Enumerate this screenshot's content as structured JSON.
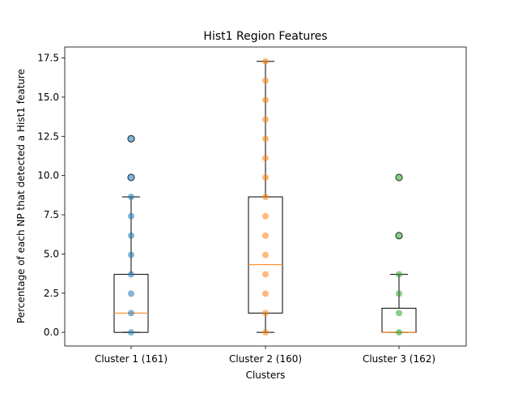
{
  "chart_data": {
    "type": "box",
    "title": "Hist1 Region Features",
    "xlabel": "Clusters",
    "ylabel": "Percentage of each NP that detected a Hist1 feature",
    "ylim": [
      -0.87,
      18.2
    ],
    "yticks": [
      0.0,
      2.5,
      5.0,
      7.5,
      10.0,
      12.5,
      15.0,
      17.5
    ],
    "ytick_labels": [
      "0.0",
      "2.5",
      "5.0",
      "7.5",
      "10.0",
      "12.5",
      "15.0",
      "17.5"
    ],
    "grid": false,
    "categories": [
      "Cluster 1 (161)",
      "Cluster 2 (160)",
      "Cluster 3 (162)"
    ],
    "boxes": [
      {
        "category": "Cluster 1 (161)",
        "q1": 0.0,
        "median": 1.23,
        "q3": 3.7,
        "whisker_low": 0.0,
        "whisker_high": 8.64,
        "outliers": [
          9.88,
          12.35
        ]
      },
      {
        "category": "Cluster 2 (160)",
        "q1": 1.23,
        "median": 4.32,
        "q3": 8.64,
        "whisker_low": 0.0,
        "whisker_high": 17.28,
        "outliers": []
      },
      {
        "category": "Cluster 3 (162)",
        "q1": 0.0,
        "median": 0.0,
        "q3": 1.54,
        "whisker_low": 0.0,
        "whisker_high": 3.7,
        "outliers": [
          6.17,
          9.88
        ]
      }
    ],
    "series": [
      {
        "category": "Cluster 1 (161)",
        "color": "#1f77b4",
        "points": [
          0.0,
          1.23,
          2.47,
          3.7,
          4.94,
          6.17,
          7.41,
          8.64,
          9.88,
          12.35
        ]
      },
      {
        "category": "Cluster 2 (160)",
        "color": "#ff7f0e",
        "points": [
          0.0,
          1.23,
          2.47,
          3.7,
          4.94,
          6.17,
          7.41,
          8.64,
          9.88,
          11.11,
          12.35,
          13.58,
          14.81,
          16.05,
          17.28
        ]
      },
      {
        "category": "Cluster 3 (162)",
        "color": "#2ca02c",
        "points": [
          0.0,
          1.23,
          2.47,
          3.7,
          6.17,
          9.88
        ]
      }
    ],
    "colors": {
      "box": "#000000",
      "median": "#ff7f0e"
    }
  }
}
